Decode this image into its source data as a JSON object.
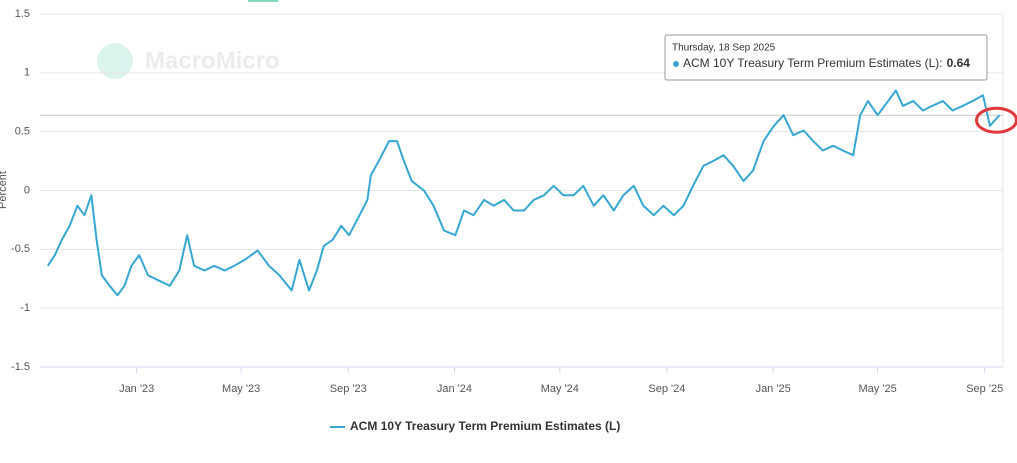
{
  "chart_data": {
    "type": "line",
    "y_label": "Percent",
    "watermark": "MacroMicro",
    "x": [
      "2022-09-21",
      "2022-09-29",
      "2022-10-07",
      "2022-10-16",
      "2022-10-25",
      "2022-11-02",
      "2022-11-10",
      "2022-11-16",
      "2022-11-22",
      "2022-12-01",
      "2022-12-10",
      "2022-12-18",
      "2022-12-26",
      "2023-01-04",
      "2023-01-14",
      "2023-01-25",
      "2023-02-08",
      "2023-02-19",
      "2023-02-28",
      "2023-03-08",
      "2023-03-20",
      "2023-03-31",
      "2023-04-12",
      "2023-04-23",
      "2023-05-05",
      "2023-05-20",
      "2023-06-02",
      "2023-06-14",
      "2023-06-28",
      "2023-07-07",
      "2023-07-18",
      "2023-07-27",
      "2023-08-04",
      "2023-08-14",
      "2023-08-24",
      "2023-09-02",
      "2023-09-14",
      "2023-09-23",
      "2023-09-27",
      "2023-10-06",
      "2023-10-18",
      "2023-10-27",
      "2023-11-04",
      "2023-11-13",
      "2023-11-27",
      "2023-12-08",
      "2023-12-20",
      "2024-01-02",
      "2024-01-12",
      "2024-01-23",
      "2024-02-04",
      "2024-02-15",
      "2024-02-27",
      "2024-03-09",
      "2024-03-21",
      "2024-04-01",
      "2024-04-13",
      "2024-04-24",
      "2024-05-05",
      "2024-05-17",
      "2024-05-28",
      "2024-06-09",
      "2024-06-20",
      "2024-07-02",
      "2024-07-13",
      "2024-07-25",
      "2024-08-05",
      "2024-08-17",
      "2024-08-28",
      "2024-09-09",
      "2024-09-20",
      "2024-10-01",
      "2024-10-13",
      "2024-10-24",
      "2024-11-05",
      "2024-11-16",
      "2024-11-28",
      "2024-12-09",
      "2024-12-21",
      "2025-01-02",
      "2025-01-13",
      "2025-01-24",
      "2025-02-05",
      "2025-02-16",
      "2025-02-27",
      "2025-03-11",
      "2025-03-22",
      "2025-04-03",
      "2025-04-11",
      "2025-04-20",
      "2025-05-01",
      "2025-05-13",
      "2025-05-22",
      "2025-05-30",
      "2025-06-11",
      "2025-06-22",
      "2025-07-03",
      "2025-07-15",
      "2025-07-26",
      "2025-08-07",
      "2025-08-18",
      "2025-08-30",
      "2025-09-07",
      "2025-09-18"
    ],
    "series": [
      {
        "name": "ACM 10Y Treasury Term Premium Estimates (L)",
        "color": "#35a7d1",
        "values": [
          -0.64,
          -0.55,
          -0.42,
          -0.3,
          -0.13,
          -0.21,
          -0.04,
          -0.42,
          -0.72,
          -0.81,
          -0.89,
          -0.81,
          -0.64,
          -0.55,
          -0.72,
          -0.76,
          -0.81,
          -0.68,
          -0.38,
          -0.64,
          -0.68,
          -0.64,
          -0.68,
          -0.64,
          -0.59,
          -0.51,
          -0.64,
          -0.72,
          -0.85,
          -0.59,
          -0.85,
          -0.68,
          -0.47,
          -0.42,
          -0.3,
          -0.38,
          -0.21,
          -0.08,
          0.13,
          0.25,
          0.42,
          0.42,
          0.25,
          0.08,
          0,
          -0.13,
          -0.34,
          -0.38,
          -0.17,
          -0.21,
          -0.08,
          -0.13,
          -0.08,
          -0.17,
          -0.17,
          -0.08,
          -0.04,
          0.04,
          -0.04,
          -0.04,
          0.04,
          -0.13,
          -0.04,
          -0.17,
          -0.04,
          0.04,
          -0.13,
          -0.21,
          -0.13,
          -0.21,
          -0.13,
          0.04,
          0.21,
          0.25,
          0.3,
          0.21,
          0.08,
          0.17,
          0.42,
          0.55,
          0.64,
          0.47,
          0.51,
          0.42,
          0.34,
          0.38,
          0.34,
          0.3,
          0.64,
          0.76,
          0.64,
          0.76,
          0.85,
          0.72,
          0.76,
          0.68,
          0.72,
          0.76,
          0.68,
          0.72,
          0.76,
          0.81,
          0.55,
          0.64
        ]
      }
    ],
    "xlim": [
      "2022-09-12",
      "2025-09-22"
    ],
    "xticks": [
      {
        "value": "2023-01-01",
        "label": "Jan '23"
      },
      {
        "value": "2023-05-01",
        "label": "May '23"
      },
      {
        "value": "2023-09-01",
        "label": "Sep '23"
      },
      {
        "value": "2024-01-01",
        "label": "Jan '24"
      },
      {
        "value": "2024-05-01",
        "label": "May '24"
      },
      {
        "value": "2024-09-01",
        "label": "Sep '24"
      },
      {
        "value": "2025-01-01",
        "label": "Jan '25"
      },
      {
        "value": "2025-05-01",
        "label": "May '25"
      },
      {
        "value": "2025-09-01",
        "label": "Sep '25"
      }
    ],
    "ylim": [
      -1.5,
      1.5
    ],
    "yticks": [
      -1.5,
      -1,
      -0.5,
      0,
      0.5,
      1,
      1.5
    ],
    "grid": true,
    "legend": "bottom",
    "tooltip": {
      "date": "Thursday, 18 Sep 2025",
      "label": "ACM 10Y Treasury Term Premium Estimates (L):",
      "value": 0.64
    }
  }
}
